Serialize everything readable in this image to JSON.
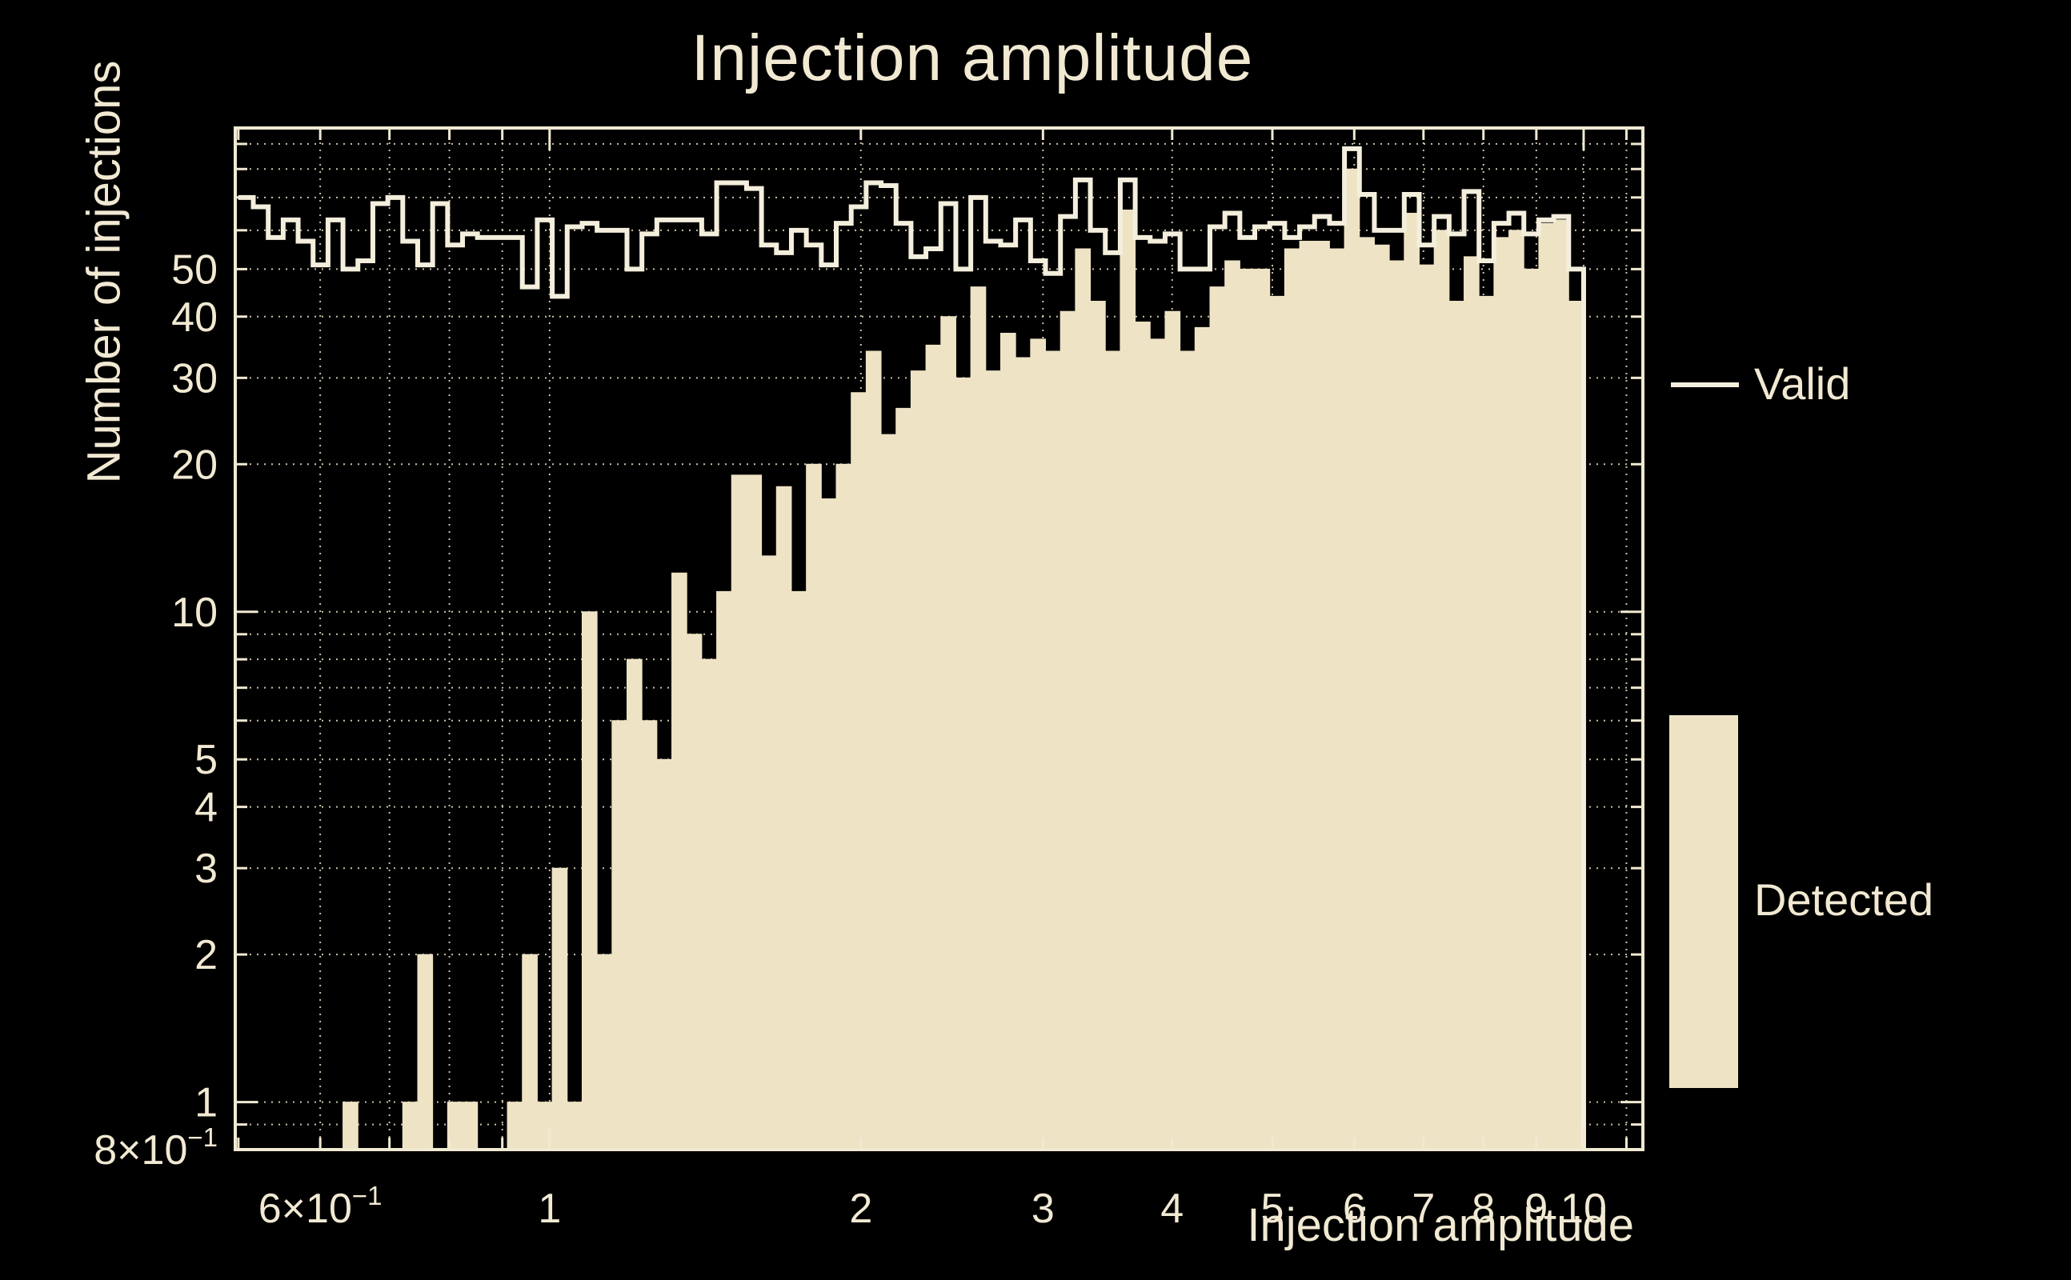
{
  "title": "Injection amplitude",
  "colors": {
    "background": "#000000",
    "detected_fill": "#eee3c5",
    "valid_line": "#f4eedc",
    "text": "#f1e9d2",
    "frame": "#f1e9d2",
    "grid": "#eee3c5"
  },
  "legend": {
    "entries": [
      {
        "label": "Valid",
        "marker": "line"
      },
      {
        "label": "Detected",
        "marker": "box"
      }
    ]
  },
  "chart_data": {
    "type": "bar",
    "subtype": "step-histogram-log-log",
    "title": "Injection amplitude",
    "xlabel": "Injection amplitude",
    "ylabel": "Number of injections",
    "x_scale": "log",
    "y_scale": "log",
    "frame_x_range": [
      0.4966,
      11.41
    ],
    "frame_y_range": [
      0.8,
      97
    ],
    "bins": {
      "count": 90,
      "min": 0.5,
      "max": 10,
      "spacing": "log"
    },
    "series": [
      {
        "name": "Valid",
        "style": "step-line",
        "values": [
          70,
          67,
          58,
          63,
          57,
          51,
          63,
          50,
          52,
          68,
          70,
          57,
          51,
          68,
          56,
          59,
          58,
          58,
          58,
          46,
          63,
          44,
          61,
          62,
          60,
          60,
          50,
          59,
          63,
          63,
          63,
          59,
          75,
          75,
          73,
          56,
          54,
          60,
          56,
          51,
          62,
          67,
          75,
          74,
          62,
          53,
          55,
          68,
          50,
          70,
          57,
          56,
          63,
          52,
          49,
          64,
          76,
          60,
          54,
          76,
          58,
          57,
          59,
          50,
          50,
          61,
          65,
          58,
          61,
          62,
          58,
          61,
          64,
          62,
          88,
          71,
          60,
          60,
          71,
          56,
          64,
          59,
          72,
          52,
          62,
          65,
          59,
          63,
          64,
          50
        ]
      },
      {
        "name": "Detected",
        "style": "filled-bars",
        "values": [
          0,
          0,
          0,
          0,
          0,
          0,
          0,
          1,
          0,
          0,
          0,
          1,
          2,
          0,
          1,
          1,
          0,
          0,
          1,
          2,
          1,
          3,
          1,
          10,
          2,
          6,
          8,
          6,
          5,
          12,
          9,
          8,
          11,
          19,
          19,
          13,
          18,
          11,
          20,
          17,
          20,
          28,
          34,
          23,
          26,
          31,
          35,
          40,
          30,
          46,
          31,
          37,
          33,
          36,
          34,
          41,
          55,
          43,
          34,
          66,
          39,
          36,
          41,
          34,
          38,
          46,
          52,
          50,
          50,
          44,
          55,
          57,
          57,
          55,
          80,
          58,
          56,
          52,
          65,
          51,
          60,
          43,
          53,
          44,
          58,
          60,
          50,
          62,
          63,
          43
        ]
      }
    ],
    "x_axis": {
      "title": "Injection amplitude",
      "labeled_ticks": [
        {
          "v": 0.6,
          "label": "6×10^−1"
        },
        {
          "v": 1,
          "label": "1"
        },
        {
          "v": 2,
          "label": "2"
        },
        {
          "v": 3,
          "label": "3"
        },
        {
          "v": 4,
          "label": "4"
        },
        {
          "v": 5,
          "label": "5"
        },
        {
          "v": 6,
          "label": "6"
        },
        {
          "v": 7,
          "label": "7"
        },
        {
          "v": 8,
          "label": "8"
        },
        {
          "v": 9,
          "label": "9"
        },
        {
          "v": 10,
          "label": "10"
        }
      ],
      "grid_values": [
        0.6,
        0.7,
        0.8,
        0.9,
        1,
        2,
        3,
        4,
        5,
        6,
        7,
        8,
        9,
        10,
        11
      ],
      "decade_ticks": [
        1,
        10
      ]
    },
    "y_axis": {
      "title": "Number of injections",
      "labeled_ticks": [
        {
          "v": 50,
          "label": "50"
        },
        {
          "v": 40,
          "label": "40"
        },
        {
          "v": 30,
          "label": "30"
        },
        {
          "v": 20,
          "label": "20"
        },
        {
          "v": 10,
          "label": "10"
        },
        {
          "v": 5,
          "label": "5"
        },
        {
          "v": 4,
          "label": "4"
        },
        {
          "v": 3,
          "label": "3"
        },
        {
          "v": 2,
          "label": "2"
        },
        {
          "v": 1,
          "label": "1"
        },
        {
          "v": 0.8,
          "label": "8×10^−1"
        }
      ],
      "grid_values": [
        0.9,
        1,
        2,
        3,
        4,
        5,
        6,
        7,
        8,
        9,
        10,
        20,
        30,
        40,
        50,
        60,
        70,
        80,
        90
      ],
      "decade_ticks": [
        1,
        10
      ]
    },
    "grid": "dotted, all log subdivisions, cream on black",
    "legend_position": "right, outside frame"
  }
}
